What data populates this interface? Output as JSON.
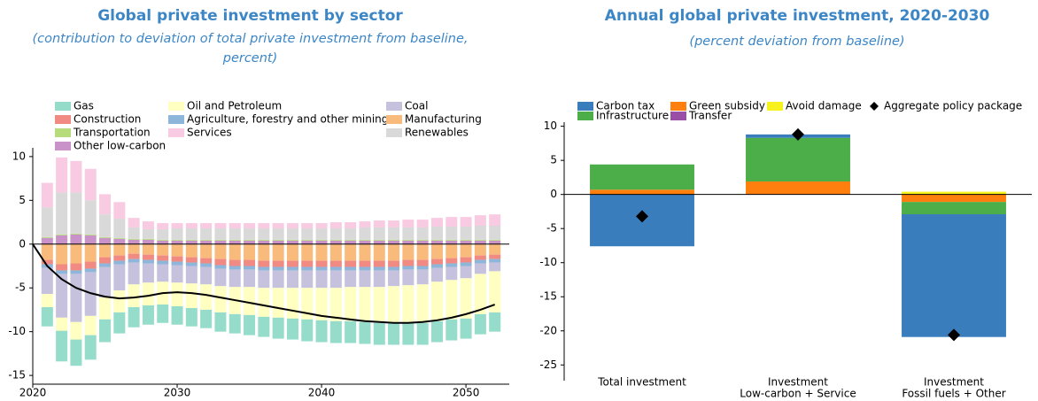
{
  "chart_data": [
    {
      "type": "bar",
      "stacked": true,
      "title": "Global private investment by sector",
      "subtitle": "(contribution to deviation of total private investment from baseline, percent)",
      "x": [
        2021,
        2022,
        2023,
        2024,
        2025,
        2026,
        2027,
        2028,
        2029,
        2030,
        2031,
        2032,
        2033,
        2034,
        2035,
        2036,
        2037,
        2038,
        2039,
        2040,
        2041,
        2042,
        2043,
        2044,
        2045,
        2046,
        2047,
        2048,
        2049,
        2050,
        2051,
        2052
      ],
      "xlim": [
        2020,
        2053
      ],
      "xticks": [
        2020,
        2030,
        2040,
        2050
      ],
      "ylim": [
        -16,
        11
      ],
      "yticks": [
        -15,
        -10,
        -5,
        0,
        5,
        10
      ],
      "series": [
        {
          "name": "Gas",
          "color": "#95dccb",
          "values": [
            -2.2,
            -3.5,
            -3.0,
            -2.8,
            -2.6,
            -2.4,
            -2.3,
            -2.2,
            -2.1,
            -2.1,
            -2.1,
            -2.1,
            -2.2,
            -2.2,
            -2.3,
            -2.3,
            -2.4,
            -2.4,
            -2.5,
            -2.5,
            -2.5,
            -2.5,
            -2.5,
            -2.5,
            -2.5,
            -2.5,
            -2.5,
            -2.4,
            -2.4,
            -2.3,
            -2.3,
            -2.2
          ]
        },
        {
          "name": "Oil and Petroleum",
          "color": "#ffffc2",
          "values": [
            -1.5,
            -1.5,
            -2.0,
            -2.2,
            -2.5,
            -2.5,
            -2.6,
            -2.6,
            -2.6,
            -2.7,
            -2.8,
            -2.9,
            -3.0,
            -3.1,
            -3.2,
            -3.3,
            -3.4,
            -3.5,
            -3.6,
            -3.7,
            -3.8,
            -3.9,
            -4.0,
            -4.1,
            -4.2,
            -4.3,
            -4.4,
            -4.5,
            -4.5,
            -4.6,
            -4.6,
            -4.7
          ]
        },
        {
          "name": "Coal",
          "color": "#c6c2de",
          "values": [
            -3.0,
            -5.0,
            -5.5,
            -5.0,
            -3.5,
            -3.0,
            -2.5,
            -2.2,
            -2.0,
            -2.0,
            -2.0,
            -2.0,
            -2.0,
            -2.0,
            -2.0,
            -2.0,
            -2.0,
            -2.0,
            -2.0,
            -2.0,
            -2.0,
            -1.9,
            -1.9,
            -1.9,
            -1.8,
            -1.8,
            -1.7,
            -1.6,
            -1.5,
            -1.4,
            -1.2,
            -1.0
          ]
        },
        {
          "name": "Construction",
          "color": "#f08a82",
          "values": [
            -0.5,
            -0.7,
            -0.8,
            -0.8,
            -0.7,
            -0.6,
            -0.6,
            -0.6,
            -0.6,
            -0.6,
            -0.6,
            -0.6,
            -0.7,
            -0.7,
            -0.7,
            -0.7,
            -0.7,
            -0.7,
            -0.7,
            -0.7,
            -0.7,
            -0.7,
            -0.7,
            -0.7,
            -0.7,
            -0.7,
            -0.7,
            -0.6,
            -0.6,
            -0.6,
            -0.5,
            -0.5
          ]
        },
        {
          "name": "Agriculture, forestry and other mining",
          "color": "#8db6da",
          "values": [
            -0.4,
            -0.4,
            -0.4,
            -0.4,
            -0.4,
            -0.4,
            -0.4,
            -0.4,
            -0.4,
            -0.4,
            -0.4,
            -0.4,
            -0.4,
            -0.4,
            -0.4,
            -0.4,
            -0.4,
            -0.4,
            -0.4,
            -0.4,
            -0.4,
            -0.4,
            -0.4,
            -0.4,
            -0.4,
            -0.4,
            -0.4,
            -0.4,
            -0.4,
            -0.4,
            -0.4,
            -0.4
          ]
        },
        {
          "name": "Manufacturing",
          "color": "#f9bb7c",
          "values": [
            -1.8,
            -2.3,
            -2.2,
            -2.0,
            -1.5,
            -1.3,
            -1.1,
            -1.2,
            -1.3,
            -1.4,
            -1.5,
            -1.6,
            -1.7,
            -1.8,
            -1.8,
            -1.9,
            -1.9,
            -1.9,
            -1.9,
            -1.9,
            -1.9,
            -1.9,
            -1.9,
            -1.9,
            -1.9,
            -1.8,
            -1.8,
            -1.7,
            -1.6,
            -1.5,
            -1.3,
            -1.2
          ]
        },
        {
          "name": "Transportation",
          "color": "#b6dc7c",
          "values": [
            0.1,
            0.1,
            0.1,
            0.1,
            0.1,
            0.1,
            0.1,
            0.1,
            0.1,
            0.1,
            0.1,
            0.1,
            0.1,
            0.1,
            0.1,
            0.1,
            0.1,
            0.1,
            0.1,
            0.1,
            0.1,
            0.1,
            0.1,
            0.1,
            0.1,
            0.1,
            0.1,
            0.1,
            0.1,
            0.1,
            0.1,
            0.1
          ]
        },
        {
          "name": "Services",
          "color": "#f9cbe2",
          "values": [
            2.8,
            4.0,
            3.6,
            3.6,
            2.3,
            1.9,
            1.1,
            0.9,
            0.7,
            0.6,
            0.6,
            0.6,
            0.6,
            0.6,
            0.6,
            0.6,
            0.6,
            0.6,
            0.6,
            0.6,
            0.7,
            0.7,
            0.7,
            0.8,
            0.8,
            0.9,
            0.9,
            1.0,
            1.1,
            1.1,
            1.2,
            1.3
          ]
        },
        {
          "name": "Renewables",
          "color": "#d9d9d9",
          "values": [
            3.4,
            4.8,
            4.7,
            3.9,
            2.6,
            2.2,
            1.3,
            1.1,
            1.2,
            1.3,
            1.3,
            1.3,
            1.3,
            1.3,
            1.3,
            1.3,
            1.3,
            1.3,
            1.3,
            1.3,
            1.3,
            1.3,
            1.4,
            1.4,
            1.4,
            1.4,
            1.4,
            1.5,
            1.5,
            1.5,
            1.6,
            1.6
          ]
        },
        {
          "name": "Other low-carbon",
          "color": "#c992c9",
          "values": [
            0.7,
            1.0,
            1.1,
            1.0,
            0.7,
            0.6,
            0.5,
            0.5,
            0.4,
            0.4,
            0.4,
            0.4,
            0.4,
            0.4,
            0.4,
            0.4,
            0.4,
            0.4,
            0.4,
            0.4,
            0.4,
            0.4,
            0.4,
            0.4,
            0.4,
            0.4,
            0.4,
            0.4,
            0.4,
            0.4,
            0.4,
            0.4
          ]
        }
      ],
      "line": {
        "color": "#000000",
        "x": [
          2020,
          2021,
          2022,
          2023,
          2024,
          2025,
          2026,
          2027,
          2028,
          2029,
          2030,
          2031,
          2032,
          2033,
          2034,
          2035,
          2036,
          2037,
          2038,
          2039,
          2040,
          2041,
          2042,
          2043,
          2044,
          2045,
          2046,
          2047,
          2048,
          2049,
          2050,
          2051,
          2052
        ],
        "values": [
          0,
          -2.5,
          -4,
          -5,
          -5.6,
          -6,
          -6.2,
          -6.1,
          -5.9,
          -5.6,
          -5.5,
          -5.6,
          -5.8,
          -6.1,
          -6.4,
          -6.7,
          -7.0,
          -7.3,
          -7.6,
          -7.9,
          -8.2,
          -8.4,
          -8.6,
          -8.8,
          -8.9,
          -9.0,
          -9.0,
          -8.9,
          -8.7,
          -8.4,
          -8.0,
          -7.5,
          -6.9
        ]
      }
    },
    {
      "type": "bar",
      "stacked": true,
      "title": "Annual global private investment, 2020-2030",
      "subtitle": "(percent deviation from baseline)",
      "categories": [
        [
          "Total investment"
        ],
        [
          "Investment",
          "Low-carbon + Service"
        ],
        [
          "Investment",
          "Fossil fuels + Other"
        ]
      ],
      "ylim": [
        -27.3,
        10.6
      ],
      "yticks": [
        -25,
        -20,
        -15,
        -10,
        -5,
        0,
        5,
        10
      ],
      "series": [
        {
          "name": "Carbon tax",
          "color": "#3a7dbd",
          "values": [
            -7.6,
            0.5,
            -18
          ]
        },
        {
          "name": "Green subsidy",
          "color": "#ff7f0e",
          "values": [
            0.7,
            1.9,
            -1.1
          ]
        },
        {
          "name": "Avoid damage",
          "color": "#f7f21e",
          "values": [
            0,
            0,
            0.4
          ]
        },
        {
          "name": "Infrastructure",
          "color": "#4cae48",
          "values": [
            3.7,
            6.4,
            -1.8
          ]
        },
        {
          "name": "Transfer",
          "color": "#9a4fa6",
          "values": [
            0,
            0,
            0
          ]
        }
      ],
      "markers": {
        "name": "Aggregate policy package",
        "color": "#000000",
        "values": [
          -3.2,
          8.8,
          -20.6
        ]
      }
    }
  ]
}
